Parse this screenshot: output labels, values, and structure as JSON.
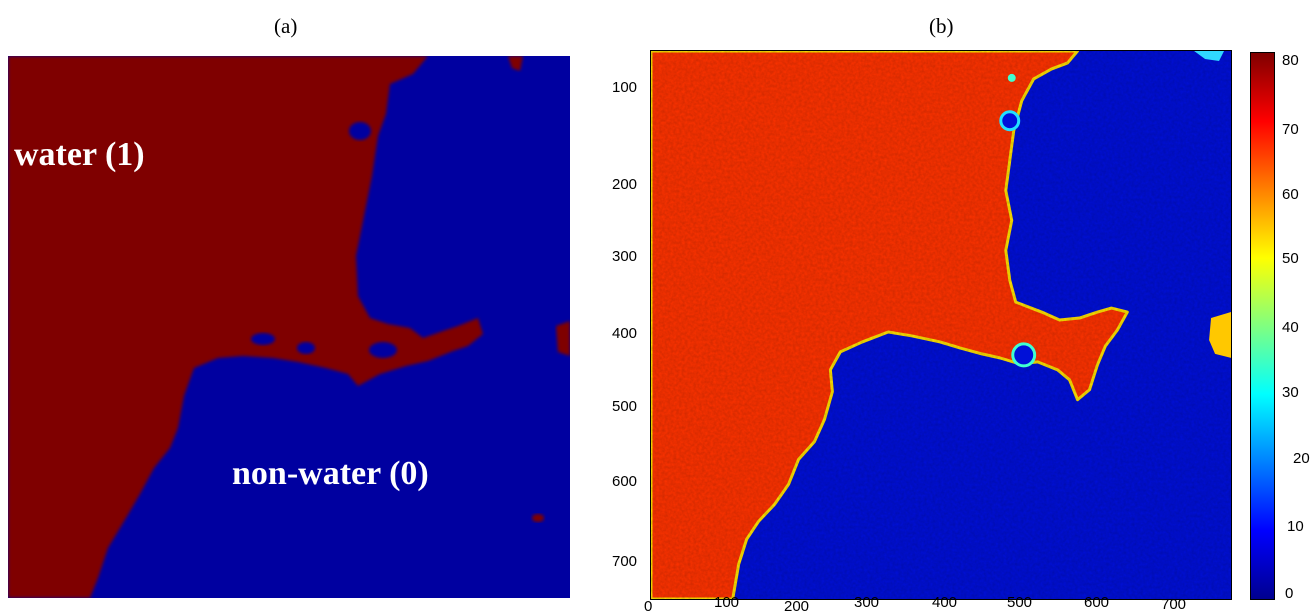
{
  "panel_a": {
    "label": "(a)",
    "water_label": "water (1)",
    "nonwater_label": "non-water (0)",
    "colors": {
      "water": "#7f0000",
      "nonwater": "#0000a0"
    }
  },
  "panel_b": {
    "label": "(b)",
    "x_ticks": [
      "0",
      "100",
      "200",
      "300",
      "400",
      "500",
      "600",
      "700"
    ],
    "y_ticks": [
      "100",
      "200",
      "300",
      "400",
      "500",
      "600",
      "700"
    ],
    "colorbar_ticks": [
      "80",
      "70",
      "60",
      "50",
      "40",
      "30",
      "20",
      "10",
      "0"
    ],
    "colors": {
      "water": "#ff3300",
      "nonwater": "#0010d8"
    }
  }
}
